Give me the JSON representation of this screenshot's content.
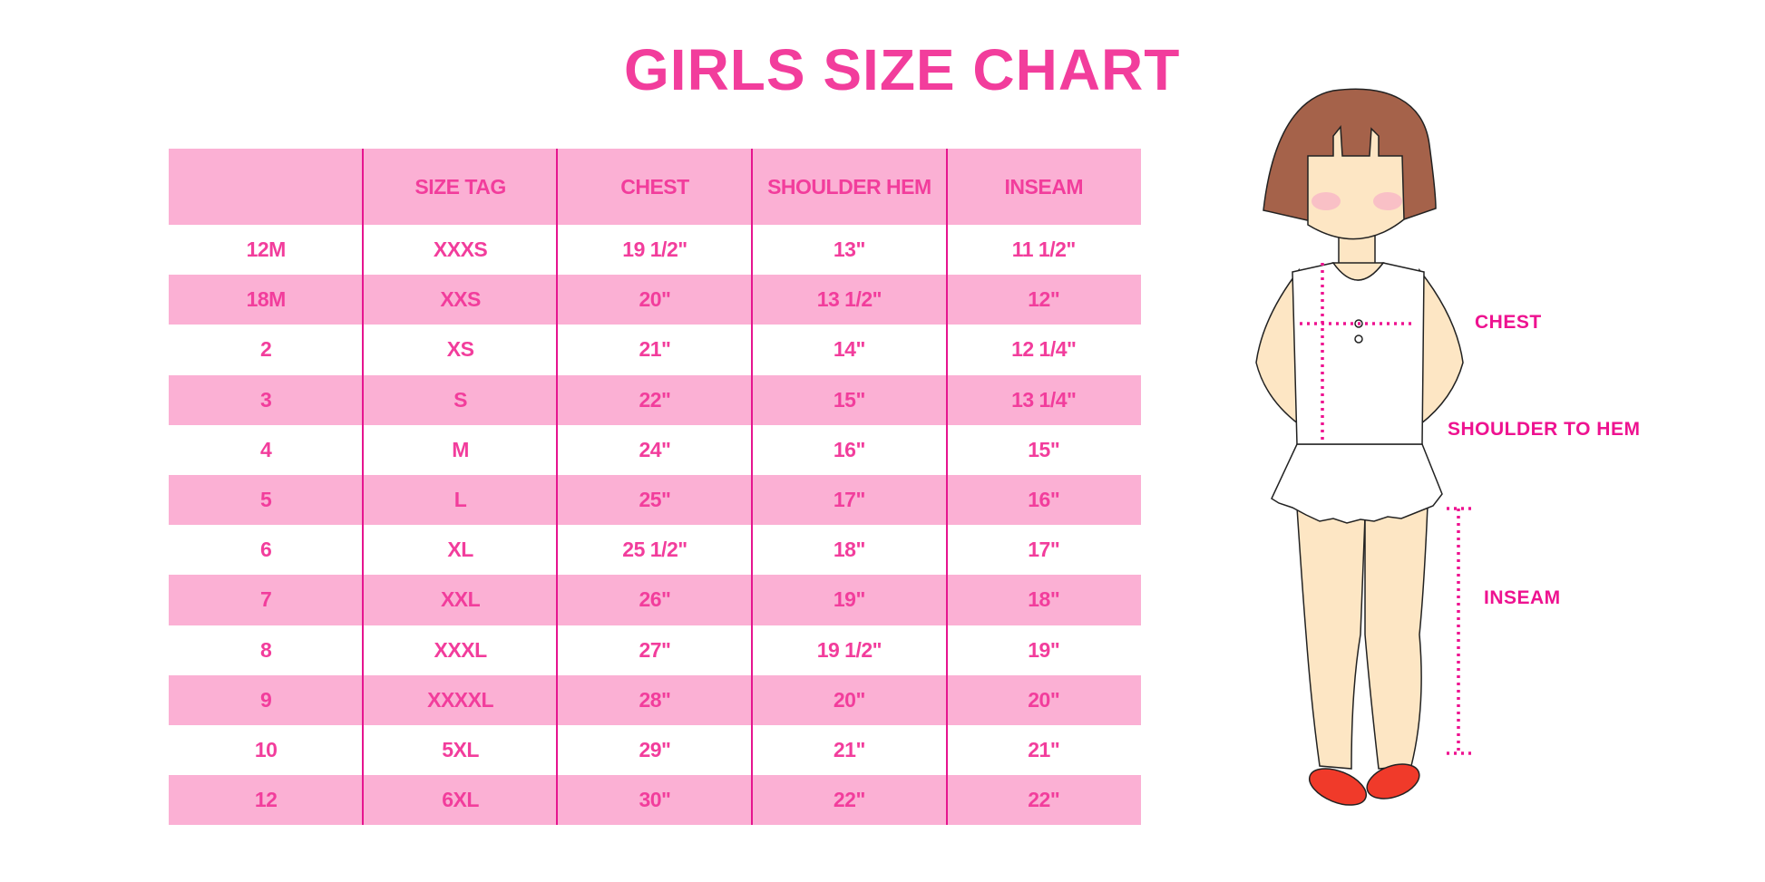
{
  "title": "GIRLS SIZE CHART",
  "table": {
    "headers": [
      "",
      "SIZE TAG",
      "CHEST",
      "SHOULDER HEM",
      "INSEAM"
    ],
    "rows": [
      [
        "12M",
        "XXXS",
        "19 1/2\"",
        "13\"",
        "11 1/2\""
      ],
      [
        "18M",
        "XXS",
        "20\"",
        "13 1/2\"",
        "12\""
      ],
      [
        "2",
        "XS",
        "21\"",
        "14\"",
        "12 1/4\""
      ],
      [
        "3",
        "S",
        "22\"",
        "15\"",
        "13 1/4\""
      ],
      [
        "4",
        "M",
        "24\"",
        "16\"",
        "15\""
      ],
      [
        "5",
        "L",
        "25\"",
        "17\"",
        "16\""
      ],
      [
        "6",
        "XL",
        "25 1/2\"",
        "18\"",
        "17\""
      ],
      [
        "7",
        "XXL",
        "26\"",
        "19\"",
        "18\""
      ],
      [
        "8",
        "XXXL",
        "27\"",
        "19 1/2\"",
        "19\""
      ],
      [
        "9",
        "XXXXL",
        "28\"",
        "20\"",
        "20\""
      ],
      [
        "10",
        "5XL",
        "29\"",
        "21\"",
        "21\""
      ],
      [
        "12",
        "6XL",
        "30\"",
        "22\"",
        "22\""
      ]
    ]
  },
  "illustration": {
    "labels": {
      "chest": "CHEST",
      "shoulder_to_hem": "SHOULDER TO HEM",
      "inseam": "INSEAM"
    }
  },
  "colors": {
    "accent_text": "#f23d9c",
    "row_pink": "#fbb0d4",
    "divider": "#e6158f",
    "label": "#ee1290",
    "hair": "#a5624a",
    "skin": "#fde6c4",
    "shoes": "#f03a2a"
  }
}
